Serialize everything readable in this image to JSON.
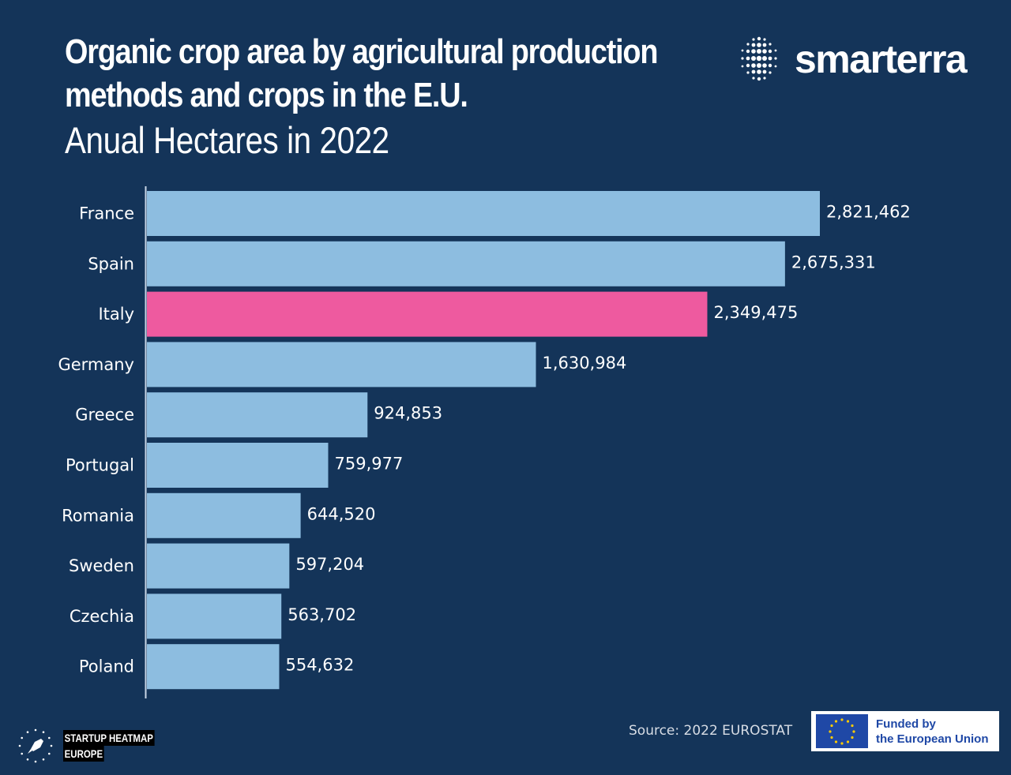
{
  "header": {
    "title": "Organic crop area by agricultural production methods and crops in the E.U.",
    "subtitle": "Anual Hectares in 2022"
  },
  "brand": {
    "name": "smarterra",
    "icon": "dot-grid-icon"
  },
  "footer": {
    "source": "Source:  2022 EUROSTAT",
    "eu_line1": "Funded by",
    "eu_line2": "the European Union",
    "shm_line1": "STARTUP HEATMAP",
    "shm_line2": "EUROPE"
  },
  "colors": {
    "background": "#143459",
    "bar": "#8dbde0",
    "highlight": "#ee5a9f"
  },
  "chart_data": {
    "type": "bar",
    "orientation": "horizontal",
    "categories": [
      "France",
      "Spain",
      "Italy",
      "Germany",
      "Greece",
      "Portugal",
      "Romania",
      "Sweden",
      "Czechia",
      "Poland"
    ],
    "values": [
      2821462,
      2675331,
      2349475,
      1630984,
      924853,
      759977,
      644520,
      597204,
      563702,
      554632
    ],
    "value_labels": [
      "2,821,462",
      "2,675,331",
      "2,349,475",
      "1,630,984",
      "924,853",
      "759,977",
      "644,520",
      "597,204",
      "563,702",
      "554,632"
    ],
    "highlight": "Italy",
    "title": "Organic crop area by agricultural production methods and crops in the E.U.",
    "subtitle": "Anual Hectares in 2022",
    "xlabel": "",
    "ylabel": "",
    "grid": false,
    "legend": "none"
  }
}
